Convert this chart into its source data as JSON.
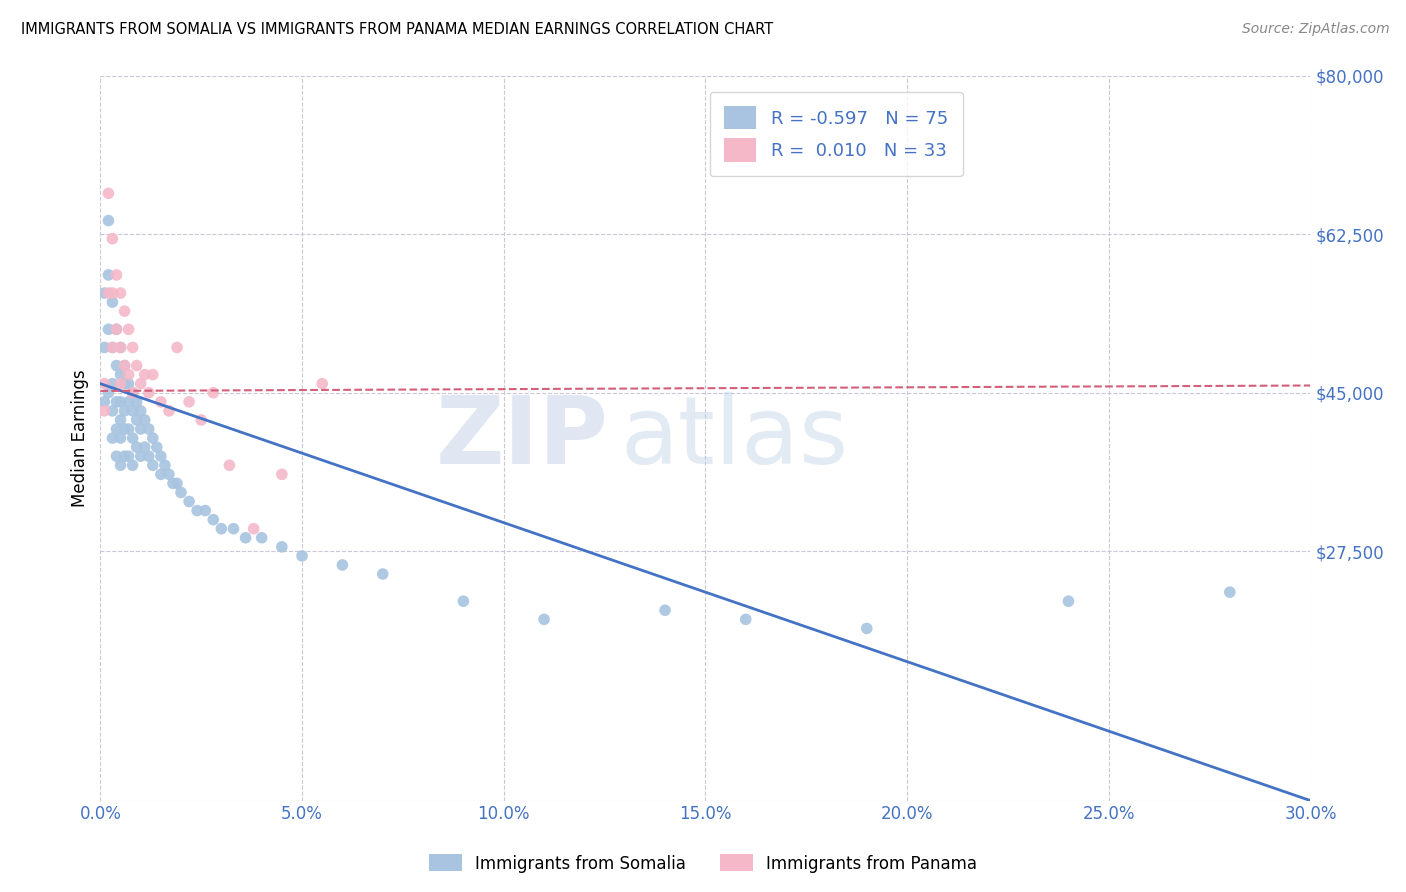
{
  "title": "IMMIGRANTS FROM SOMALIA VS IMMIGRANTS FROM PANAMA MEDIAN EARNINGS CORRELATION CHART",
  "source": "Source: ZipAtlas.com",
  "ylabel": "Median Earnings",
  "xlim": [
    0.0,
    0.3
  ],
  "ylim": [
    0,
    80000
  ],
  "yticks": [
    0,
    27500,
    45000,
    62500,
    80000
  ],
  "ytick_labels": [
    "",
    "$27,500",
    "$45,000",
    "$62,500",
    "$80,000"
  ],
  "xticks": [
    0.0,
    0.05,
    0.1,
    0.15,
    0.2,
    0.25,
    0.3
  ],
  "xtick_labels": [
    "0.0%",
    "5.0%",
    "10.0%",
    "15.0%",
    "20.0%",
    "25.0%",
    "30.0%"
  ],
  "somalia_R": -0.597,
  "somalia_N": 75,
  "panama_R": 0.01,
  "panama_N": 33,
  "somalia_color": "#a8c4e0",
  "panama_color": "#f4b8c8",
  "somalia_line_color": "#4472c4",
  "panama_line_color": "#d45f7a",
  "axis_color": "#4472c4",
  "grid_color": "#c8c8d8",
  "background_color": "#ffffff",
  "watermark_zip": "ZIP",
  "watermark_atlas": "atlas",
  "somalia_trend_x0": 0.0,
  "somalia_trend_y0": 46000,
  "somalia_trend_x1": 0.3,
  "somalia_trend_y1": 0,
  "panama_trend_x0": 0.0,
  "panama_trend_y0": 45200,
  "panama_trend_x1": 0.3,
  "panama_trend_y1": 45800,
  "somalia_x": [
    0.001,
    0.001,
    0.001,
    0.002,
    0.002,
    0.002,
    0.002,
    0.003,
    0.003,
    0.003,
    0.003,
    0.003,
    0.004,
    0.004,
    0.004,
    0.004,
    0.004,
    0.005,
    0.005,
    0.005,
    0.005,
    0.005,
    0.005,
    0.006,
    0.006,
    0.006,
    0.006,
    0.006,
    0.007,
    0.007,
    0.007,
    0.007,
    0.008,
    0.008,
    0.008,
    0.008,
    0.009,
    0.009,
    0.009,
    0.01,
    0.01,
    0.01,
    0.011,
    0.011,
    0.012,
    0.012,
    0.013,
    0.013,
    0.014,
    0.015,
    0.015,
    0.016,
    0.017,
    0.018,
    0.019,
    0.02,
    0.022,
    0.024,
    0.026,
    0.028,
    0.03,
    0.033,
    0.036,
    0.04,
    0.045,
    0.05,
    0.06,
    0.07,
    0.09,
    0.11,
    0.14,
    0.16,
    0.19,
    0.24,
    0.28
  ],
  "somalia_y": [
    56000,
    50000,
    44000,
    64000,
    58000,
    52000,
    45000,
    55000,
    50000,
    46000,
    43000,
    40000,
    52000,
    48000,
    44000,
    41000,
    38000,
    50000,
    47000,
    44000,
    42000,
    40000,
    37000,
    48000,
    46000,
    43000,
    41000,
    38000,
    46000,
    44000,
    41000,
    38000,
    45000,
    43000,
    40000,
    37000,
    44000,
    42000,
    39000,
    43000,
    41000,
    38000,
    42000,
    39000,
    41000,
    38000,
    40000,
    37000,
    39000,
    38000,
    36000,
    37000,
    36000,
    35000,
    35000,
    34000,
    33000,
    32000,
    32000,
    31000,
    30000,
    30000,
    29000,
    29000,
    28000,
    27000,
    26000,
    25000,
    22000,
    20000,
    21000,
    20000,
    19000,
    22000,
    23000
  ],
  "panama_x": [
    0.001,
    0.001,
    0.002,
    0.002,
    0.003,
    0.003,
    0.003,
    0.004,
    0.004,
    0.005,
    0.005,
    0.005,
    0.006,
    0.006,
    0.007,
    0.007,
    0.008,
    0.008,
    0.009,
    0.01,
    0.011,
    0.012,
    0.013,
    0.015,
    0.017,
    0.019,
    0.022,
    0.025,
    0.028,
    0.032,
    0.038,
    0.045,
    0.055
  ],
  "panama_y": [
    46000,
    43000,
    67000,
    56000,
    62000,
    56000,
    50000,
    58000,
    52000,
    56000,
    50000,
    46000,
    54000,
    48000,
    52000,
    47000,
    50000,
    45000,
    48000,
    46000,
    47000,
    45000,
    47000,
    44000,
    43000,
    50000,
    44000,
    42000,
    45000,
    37000,
    30000,
    36000,
    46000
  ]
}
